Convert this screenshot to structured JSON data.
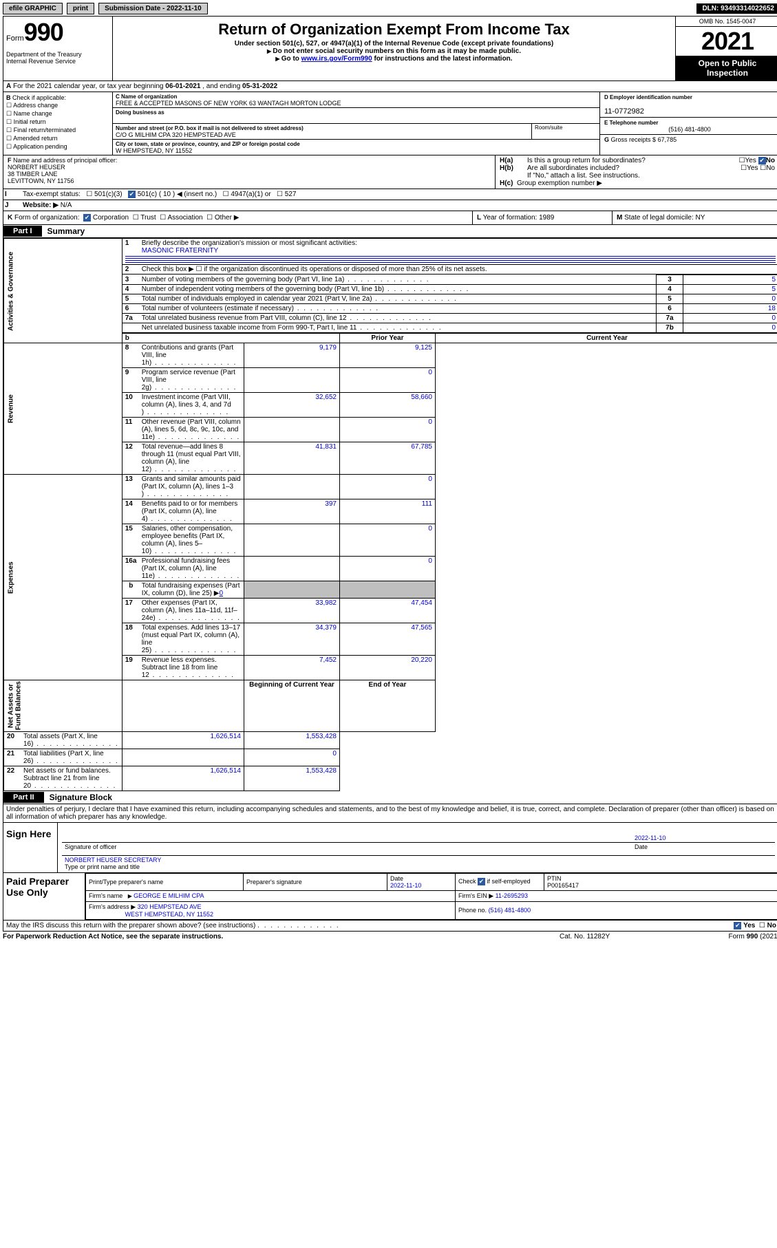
{
  "topbar": {
    "efile": "efile GRAPHIC",
    "print": "print",
    "subdate_label": "Submission Date - ",
    "subdate": "2022-11-10",
    "dln_label": "DLN: ",
    "dln": "93493314022652"
  },
  "header": {
    "form_prefix": "Form",
    "form_number": "990",
    "title": "Return of Organization Exempt From Income Tax",
    "subtitle": "Under section 501(c), 527, or 4947(a)(1) of the Internal Revenue Code (except private foundations)",
    "note1": "Do not enter social security numbers on this form as it may be made public.",
    "note2_pre": "Go to ",
    "note2_link": "www.irs.gov/Form990",
    "note2_post": " for instructions and the latest information.",
    "dept": "Department of the Treasury\nInternal Revenue Service",
    "omb": "OMB No. 1545-0047",
    "year": "2021",
    "open": "Open to Public Inspection"
  },
  "rowA": {
    "text_pre": "For the 2021 calendar year, or tax year beginning ",
    "begin": "06-01-2021",
    "mid": " , and ending ",
    "end": "05-31-2022"
  },
  "colB": {
    "label": "Check if applicable:",
    "items": [
      "Address change",
      "Name change",
      "Initial return",
      "Final return/terminated",
      "Amended return",
      "Application pending"
    ]
  },
  "colC": {
    "name_label": "Name of organization",
    "name": "FREE & ACCEPTED MASONS OF NEW YORK 63 WANTAGH MORTON LODGE",
    "dba_label": "Doing business as",
    "dba": "",
    "addr_label": "Number and street (or P.O. box if mail is not delivered to street address)",
    "addr": "C/O G MILHIM CPA 320 HEMPSTEAD AVE",
    "room_label": "Room/suite",
    "city_label": "City or town, state or province, country, and ZIP or foreign postal code",
    "city": "W HEMPSTEAD, NY  11552"
  },
  "colD": {
    "d_label": "Employer identification number",
    "d_val": "11-0772982",
    "e_label": "Telephone number",
    "e_val": "(516) 481-4800",
    "g_label": "Gross receipts $",
    "g_val": "67,785"
  },
  "rowF": {
    "label": "Name and address of principal officer:",
    "name": "NORBERT HEUSER",
    "addr1": "38 TIMBER LANE",
    "addr2": "LEVITTOWN, NY  11756"
  },
  "rowH": {
    "a_label": "Is this a group return for subordinates?",
    "b_label": "Are all subordinates included?",
    "b_note": "If \"No,\" attach a list. See instructions.",
    "c_label": "Group exemption number ▶",
    "yes": "Yes",
    "no": "No"
  },
  "rowI": {
    "label": "Tax-exempt status:",
    "opts": [
      "501(c)(3)",
      "501(c) ( 10 ) ◀ (insert no.)",
      "4947(a)(1) or",
      "527"
    ]
  },
  "rowJ": {
    "label": "Website: ▶",
    "val": "N/A"
  },
  "rowK": {
    "label": "Form of organization:",
    "opts": [
      "Corporation",
      "Trust",
      "Association",
      "Other ▶"
    ]
  },
  "rowL": {
    "label": "Year of formation:",
    "val": "1989"
  },
  "rowM": {
    "label": "State of legal domicile:",
    "val": "NY"
  },
  "parts": {
    "p1": "Part I",
    "p1t": "Summary",
    "p2": "Part II",
    "p2t": "Signature Block"
  },
  "summary": {
    "q1_label": "Briefly describe the organization's mission or most significant activities:",
    "q1_val": "MASONIC FRATERNITY",
    "q2": "Check this box ▶ ☐  if the organization discontinued its operations or disposed of more than 25% of its net assets.",
    "lines_single": [
      {
        "n": "3",
        "t": "Number of voting members of the governing body (Part VI, line 1a)",
        "box": "3",
        "v": "5"
      },
      {
        "n": "4",
        "t": "Number of independent voting members of the governing body (Part VI, line 1b)",
        "box": "4",
        "v": "5"
      },
      {
        "n": "5",
        "t": "Total number of individuals employed in calendar year 2021 (Part V, line 2a)",
        "box": "5",
        "v": "0"
      },
      {
        "n": "6",
        "t": "Total number of volunteers (estimate if necessary)",
        "box": "6",
        "v": "18"
      },
      {
        "n": "7a",
        "t": "Total unrelated business revenue from Part VIII, column (C), line 12",
        "box": "7a",
        "v": "0"
      },
      {
        "n": "",
        "t": "Net unrelated business taxable income from Form 990-T, Part I, line 11",
        "box": "7b",
        "v": "0"
      }
    ],
    "vtabs": {
      "ag": "Activities & Governance",
      "rev": "Revenue",
      "exp": "Expenses",
      "na": "Net Assets or\nFund Balances"
    },
    "col_prior": "Prior Year",
    "col_curr": "Current Year",
    "rev_lines": [
      {
        "n": "8",
        "t": "Contributions and grants (Part VIII, line 1h)",
        "p": "9,179",
        "c": "9,125"
      },
      {
        "n": "9",
        "t": "Program service revenue (Part VIII, line 2g)",
        "p": "",
        "c": "0"
      },
      {
        "n": "10",
        "t": "Investment income (Part VIII, column (A), lines 3, 4, and 7d )",
        "p": "32,652",
        "c": "58,660"
      },
      {
        "n": "11",
        "t": "Other revenue (Part VIII, column (A), lines 5, 6d, 8c, 9c, 10c, and 11e)",
        "p": "",
        "c": "0"
      },
      {
        "n": "12",
        "t": "Total revenue—add lines 8 through 11 (must equal Part VIII, column (A), line 12)",
        "p": "41,831",
        "c": "67,785"
      }
    ],
    "exp_lines": [
      {
        "n": "13",
        "t": "Grants and similar amounts paid (Part IX, column (A), lines 1–3 )",
        "p": "",
        "c": "0"
      },
      {
        "n": "14",
        "t": "Benefits paid to or for members (Part IX, column (A), line 4)",
        "p": "397",
        "c": "111"
      },
      {
        "n": "15",
        "t": "Salaries, other compensation, employee benefits (Part IX, column (A), lines 5–10)",
        "p": "",
        "c": "0"
      },
      {
        "n": "16a",
        "t": "Professional fundraising fees (Part IX, column (A), line 11e)",
        "p": "",
        "c": "0"
      }
    ],
    "line16b_pre": "Total fundraising expenses (Part IX, column (D), line 25) ▶",
    "line16b_val": "0",
    "exp_lines2": [
      {
        "n": "17",
        "t": "Other expenses (Part IX, column (A), lines 11a–11d, 11f–24e)",
        "p": "33,982",
        "c": "47,454"
      },
      {
        "n": "18",
        "t": "Total expenses. Add lines 13–17 (must equal Part IX, column (A), line 25)",
        "p": "34,379",
        "c": "47,565"
      },
      {
        "n": "19",
        "t": "Revenue less expenses. Subtract line 18 from line 12",
        "p": "7,452",
        "c": "20,220"
      }
    ],
    "col_begin": "Beginning of Current Year",
    "col_end": "End of Year",
    "na_lines": [
      {
        "n": "20",
        "t": "Total assets (Part X, line 16)",
        "p": "1,626,514",
        "c": "1,553,428"
      },
      {
        "n": "21",
        "t": "Total liabilities (Part X, line 26)",
        "p": "",
        "c": "0"
      },
      {
        "n": "22",
        "t": "Net assets or fund balances. Subtract line 21 from line 20",
        "p": "1,626,514",
        "c": "1,553,428"
      }
    ]
  },
  "sig": {
    "declare": "Under penalties of perjury, I declare that I have examined this return, including accompanying schedules and statements, and to the best of my knowledge and belief, it is true, correct, and complete. Declaration of preparer (other than officer) is based on all information of which preparer has any knowledge.",
    "sign_here": "Sign Here",
    "sig_officer": "Signature of officer",
    "date_label": "Date",
    "date_val": "2022-11-10",
    "name_title": "NORBERT HEUSER  SECRETARY",
    "name_title_label": "Type or print name and title",
    "paid": "Paid Preparer Use Only",
    "p_name_label": "Print/Type preparer's name",
    "p_sig_label": "Preparer's signature",
    "p_date": "2022-11-10",
    "p_check_label": "Check",
    "p_check_sub": "if self-employed",
    "ptin_label": "PTIN",
    "ptin": "P00165417",
    "firm_name_label": "Firm's name",
    "firm_name": "GEORGE E MILHIM CPA",
    "firm_ein_label": "Firm's EIN ▶",
    "firm_ein": "11-2695293",
    "firm_addr_label": "Firm's address ▶",
    "firm_addr1": "320 HEMPSTEAD AVE",
    "firm_addr2": "WEST HEMPSTEAD, NY  11552",
    "phone_label": "Phone no.",
    "phone": "(516) 481-4800",
    "may_irs": "May the IRS discuss this return with the preparer shown above? (see instructions)"
  },
  "footer": {
    "left": "For Paperwork Reduction Act Notice, see the separate instructions.",
    "center": "Cat. No. 11282Y",
    "right_pre": "Form ",
    "right_bold": "990",
    "right_post": " (2021)"
  }
}
